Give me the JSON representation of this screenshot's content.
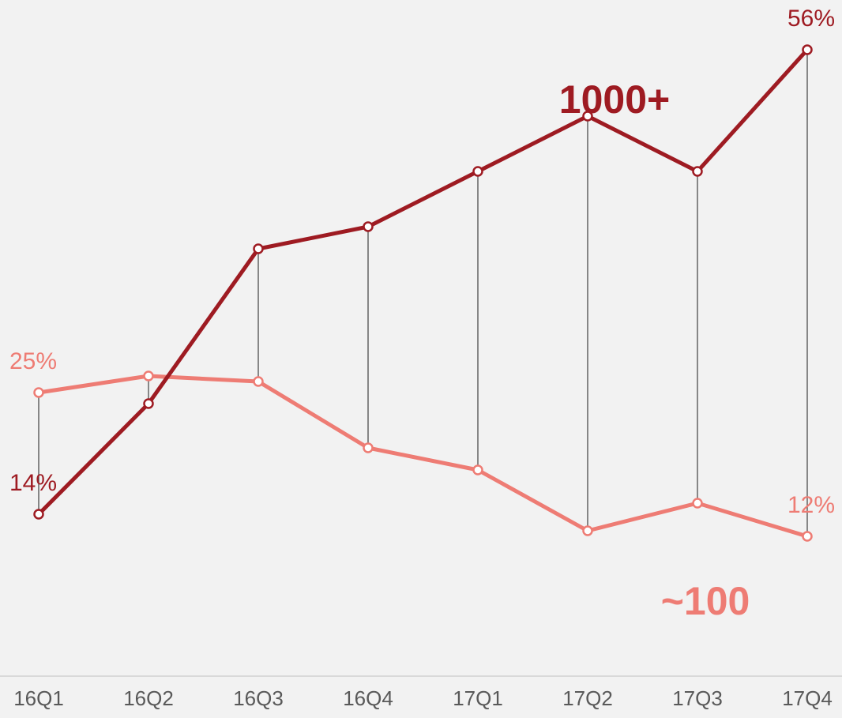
{
  "chart_data": {
    "type": "line",
    "categories": [
      "16Q1",
      "16Q2",
      "16Q3",
      "16Q4",
      "17Q1",
      "17Q2",
      "17Q3",
      "17Q4"
    ],
    "series": [
      {
        "name": "1000+",
        "color": "#9e1b22",
        "values": [
          14,
          24,
          38,
          40,
          45,
          50,
          45,
          56
        ],
        "value_labels": [
          "14%",
          null,
          null,
          null,
          null,
          null,
          null,
          "56%"
        ]
      },
      {
        "name": "~100",
        "color": "#ee7c74",
        "values": [
          25,
          26.5,
          26,
          20,
          18,
          12.5,
          15,
          12
        ],
        "value_labels": [
          "25%",
          null,
          null,
          null,
          null,
          null,
          null,
          "12%"
        ]
      }
    ],
    "ylim": [
      0,
      60.5
    ]
  }
}
